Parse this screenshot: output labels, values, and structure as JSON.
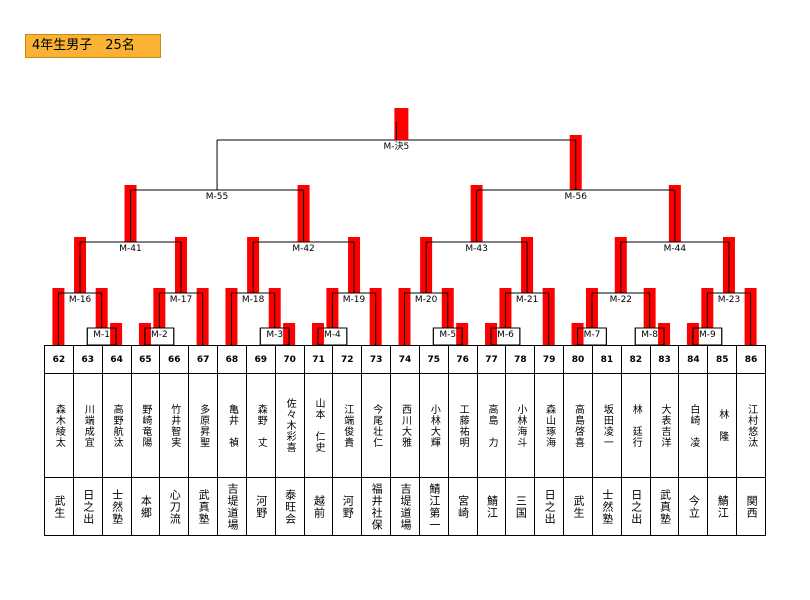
{
  "header": {
    "title": "4年生男子　25名"
  },
  "entries": [
    {
      "no": 62,
      "name": "森木綾太",
      "club": "武生"
    },
    {
      "no": 63,
      "name": "川端成宜",
      "club": "日之出"
    },
    {
      "no": 64,
      "name": "高野航汰",
      "club": "士然塾"
    },
    {
      "no": 65,
      "name": "野崎竜陽",
      "club": "本郷"
    },
    {
      "no": 66,
      "name": "竹井智実",
      "club": "心刀流"
    },
    {
      "no": 67,
      "name": "多原昇聖",
      "club": "武真塾"
    },
    {
      "no": 68,
      "name": "亀井　禎",
      "club": "吉堤道場"
    },
    {
      "no": 69,
      "name": "森野　丈",
      "club": "河野"
    },
    {
      "no": 70,
      "name": "佐々木彩喜",
      "club": "泰旺会"
    },
    {
      "no": 71,
      "name": "山本　仁史",
      "club": "越前"
    },
    {
      "no": 72,
      "name": "江端俊貴",
      "club": "河野"
    },
    {
      "no": 73,
      "name": "今尾壮仁",
      "club": "福井社保"
    },
    {
      "no": 74,
      "name": "西川大雅",
      "club": "吉堤道場"
    },
    {
      "no": 75,
      "name": "小林大輝",
      "club": "鯖江第一"
    },
    {
      "no": 76,
      "name": "工藤祐明",
      "club": "宮崎"
    },
    {
      "no": 77,
      "name": "高島　力",
      "club": "鯖江"
    },
    {
      "no": 78,
      "name": "小林海斗",
      "club": "三国"
    },
    {
      "no": 79,
      "name": "森山琢海",
      "club": "日之出"
    },
    {
      "no": 80,
      "name": "高島啓喜",
      "club": "武生"
    },
    {
      "no": 81,
      "name": "坂田凌一",
      "club": "士然塾"
    },
    {
      "no": 82,
      "name": "林　廷行",
      "club": "日之出"
    },
    {
      "no": 83,
      "name": "大表吉洋",
      "club": "武真塾"
    },
    {
      "no": 84,
      "name": "白崎　凌",
      "club": "今立"
    },
    {
      "no": 85,
      "name": "林　隆",
      "club": "鯖江"
    },
    {
      "no": 86,
      "name": "江村悠汰",
      "club": "関西"
    }
  ],
  "matches": [
    {
      "id": "M-1",
      "a": 63,
      "b": 64,
      "winner": 64
    },
    {
      "id": "M-2",
      "a": 65,
      "b": 66,
      "winner": 65
    },
    {
      "id": "M-3",
      "a": 69,
      "b": 70,
      "winner": 70
    },
    {
      "id": "M-4",
      "a": 71,
      "b": 72,
      "winner": 71
    },
    {
      "id": "M-5",
      "a": 75,
      "b": 76,
      "winner": 76
    },
    {
      "id": "M-6",
      "a": 77,
      "b": 78,
      "winner": 77
    },
    {
      "id": "M-7",
      "a": 80,
      "b": 81,
      "winner": 80
    },
    {
      "id": "M-8",
      "a": 82,
      "b": 83,
      "winner": 83
    },
    {
      "id": "M-9",
      "a": 84,
      "b": 85,
      "winner": 84
    },
    {
      "id": "M-16",
      "a": 62,
      "b": "M-1",
      "winner": 62
    },
    {
      "id": "M-17",
      "a": "M-2",
      "b": 67,
      "winner": 67
    },
    {
      "id": "M-18",
      "a": 68,
      "b": "M-3",
      "winner": 68
    },
    {
      "id": "M-19",
      "a": "M-4",
      "b": 73,
      "winner": 73
    },
    {
      "id": "M-20",
      "a": 74,
      "b": "M-5",
      "winner": 74
    },
    {
      "id": "M-21",
      "a": "M-6",
      "b": 79,
      "winner": 79
    },
    {
      "id": "M-22",
      "a": "M-7",
      "b": "M-8",
      "winner": "M-7"
    },
    {
      "id": "M-23",
      "a": "M-9",
      "b": 86,
      "winner": 86
    },
    {
      "id": "M-41",
      "a": "M-16",
      "b": "M-17",
      "winner": "M-16"
    },
    {
      "id": "M-42",
      "a": "M-18",
      "b": "M-19",
      "winner": "M-19"
    },
    {
      "id": "M-43",
      "a": "M-20",
      "b": "M-21",
      "winner": "M-20"
    },
    {
      "id": "M-44",
      "a": "M-22",
      "b": "M-23",
      "winner": "M-23"
    },
    {
      "id": "M-55",
      "a": "M-41",
      "b": "M-42",
      "winner": null
    },
    {
      "id": "M-56",
      "a": "M-43",
      "b": "M-44",
      "winner": "M-43"
    },
    {
      "id": "M-決5",
      "a": "M-55",
      "b": "M-56",
      "winner": "M-56"
    }
  ]
}
